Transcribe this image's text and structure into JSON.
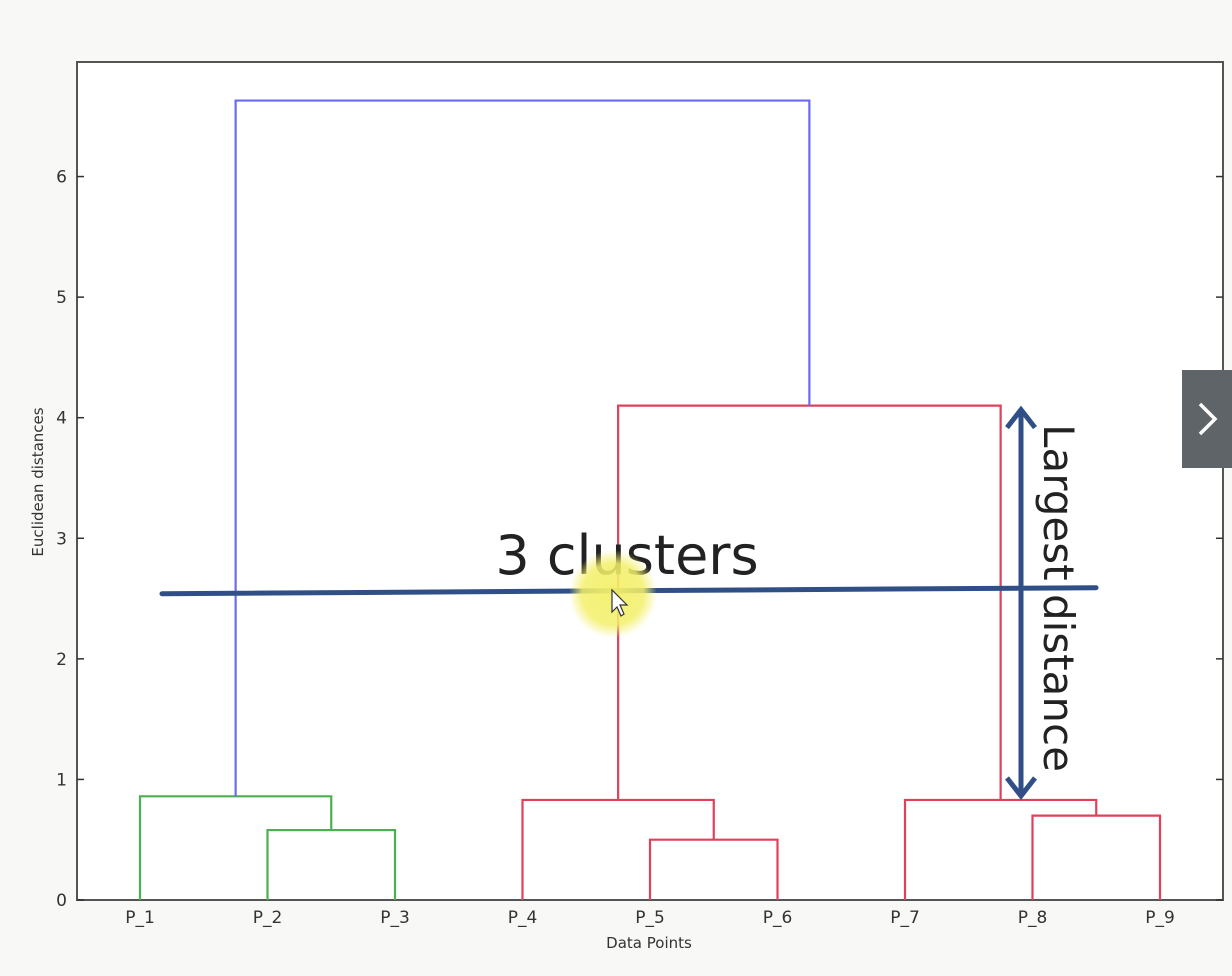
{
  "chart_data": {
    "type": "dendrogram",
    "xlabel": "Data Points",
    "ylabel": "Euclidean distances",
    "categories": [
      "P_1",
      "P_2",
      "P_3",
      "P_4",
      "P_5",
      "P_6",
      "P_7",
      "P_8",
      "P_9"
    ],
    "ylim": [
      0,
      6.95
    ],
    "yticks": [
      0,
      1,
      2,
      3,
      4,
      5,
      6
    ],
    "grid": false,
    "links": [
      {
        "left": {
          "leaf": 1
        },
        "right": {
          "leaf": 2
        },
        "height": 0.58,
        "color": "#4caf50"
      },
      {
        "left": {
          "leaf": 0
        },
        "right": {
          "link": 0
        },
        "height": 0.86,
        "color": "#4caf50"
      },
      {
        "left": {
          "leaf": 4
        },
        "right": {
          "leaf": 5
        },
        "height": 0.5,
        "color": "#e0405a"
      },
      {
        "left": {
          "leaf": 3
        },
        "right": {
          "link": 2
        },
        "height": 0.83,
        "color": "#e0405a"
      },
      {
        "left": {
          "leaf": 7
        },
        "right": {
          "leaf": 8
        },
        "height": 0.7,
        "color": "#e0405a"
      },
      {
        "left": {
          "leaf": 6
        },
        "right": {
          "link": 4
        },
        "height": 0.83,
        "color": "#e0405a"
      },
      {
        "left": {
          "link": 3
        },
        "right": {
          "link": 5
        },
        "height": 4.1,
        "color": "#e0405a"
      },
      {
        "left": {
          "link": 1
        },
        "right": {
          "link": 6
        },
        "height": 6.63,
        "color": "#6b6bf0"
      }
    ],
    "cut_line": {
      "y_start": 2.54,
      "y_end": 2.59,
      "color": "#2f4f86"
    },
    "annotations": {
      "clusters_label": "3 clusters",
      "distance_label": "Largest distance",
      "distance_arrow": {
        "from": 0.83,
        "to": 4.1,
        "color": "#2f4f86"
      }
    }
  },
  "navigation": {
    "next_icon": "chevron-right-icon",
    "color": "#5f6468"
  }
}
